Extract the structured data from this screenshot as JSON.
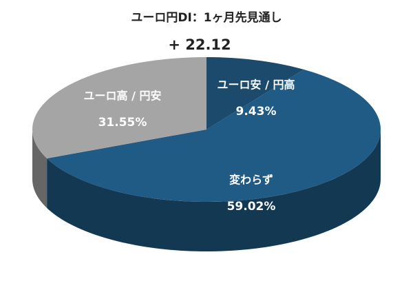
{
  "chart_data": {
    "type": "pie",
    "title": "ユーロ円DI：1ヶ月先見通し",
    "subtitle": "+ 22.12",
    "categories": [
      "ユーロ安 / 円高",
      "変わらず",
      "ユーロ高 / 円安"
    ],
    "values": [
      9.43,
      59.02,
      31.55
    ],
    "value_labels": [
      "9.43%",
      "59.02%",
      "31.55%"
    ],
    "colors": [
      "#1b4a6c",
      "#1f5b85",
      "#a5a5a5"
    ]
  }
}
